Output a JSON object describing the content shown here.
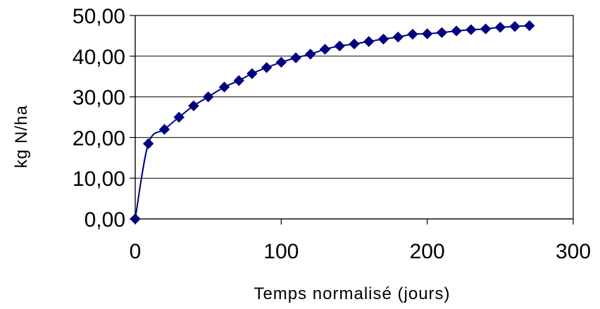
{
  "chart_data": {
    "type": "line",
    "title": "",
    "xlabel": "Temps normalisé (jours)",
    "ylabel": "kg N/ha",
    "xlim": [
      0,
      300
    ],
    "ylim": [
      0,
      50
    ],
    "x_ticks": [
      0,
      100,
      200,
      300
    ],
    "x_tick_labels": [
      "0",
      "100",
      "200",
      "300"
    ],
    "y_ticks": [
      0,
      10,
      20,
      30,
      40,
      50
    ],
    "y_tick_labels": [
      "0,00",
      "10,00",
      "20,00",
      "30,00",
      "40,00",
      "50,00"
    ],
    "grid": "horizontal",
    "legend": "none",
    "marker": "diamond",
    "line_color": "#000080",
    "marker_color": "#000080",
    "series": [
      {
        "x": [
          0,
          9,
          20,
          30,
          40,
          50,
          61,
          71,
          80,
          90,
          100,
          110,
          120,
          130,
          140,
          150,
          160,
          170,
          180,
          190,
          200,
          210,
          220,
          230,
          240,
          250,
          260,
          270
        ],
        "values": [
          0.0,
          18.5,
          22.0,
          25.0,
          27.8,
          30.0,
          32.4,
          34.0,
          35.7,
          37.2,
          38.5,
          39.6,
          40.5,
          41.7,
          42.5,
          43.0,
          43.6,
          44.2,
          44.7,
          45.4,
          45.5,
          45.8,
          46.2,
          46.5,
          46.7,
          47.1,
          47.3,
          47.5
        ]
      }
    ]
  }
}
